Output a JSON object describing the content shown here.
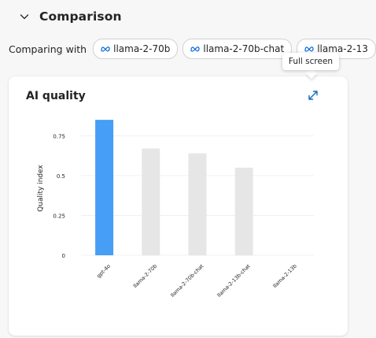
{
  "section": {
    "title": "Comparison",
    "icon": "chevron-down-icon"
  },
  "compare": {
    "label": "Comparing with",
    "chips": [
      {
        "label": "llama-2-70b",
        "icon": "meta-logo-icon"
      },
      {
        "label": "llama-2-70b-chat",
        "icon": "meta-logo-icon"
      },
      {
        "label": "llama-2-13",
        "icon": "meta-logo-icon"
      }
    ]
  },
  "tooltip": {
    "text": "Full screen"
  },
  "card": {
    "title": "AI quality",
    "fullscreen_icon": "expand-icon"
  },
  "chart_data": {
    "type": "bar",
    "title": "",
    "ylabel": "Quality index",
    "xlabel": "",
    "categories": [
      "gpt-4o",
      "llama-2-70b",
      "llama-2-70b-chat",
      "llama-2-13b-chat",
      "llama-2-13b"
    ],
    "values": [
      0.85,
      0.67,
      0.64,
      0.55,
      0.0
    ],
    "highlight_index": 0,
    "colors": {
      "highlight": "#479ef5",
      "default": "#e6e6e6"
    },
    "yticks": [
      0,
      0.25,
      0.5,
      0.75
    ],
    "ytick_labels": [
      "0",
      "0.25",
      "0.5",
      "0.75"
    ],
    "ylim": [
      0,
      0.9
    ],
    "grid": true,
    "legend": "none"
  }
}
